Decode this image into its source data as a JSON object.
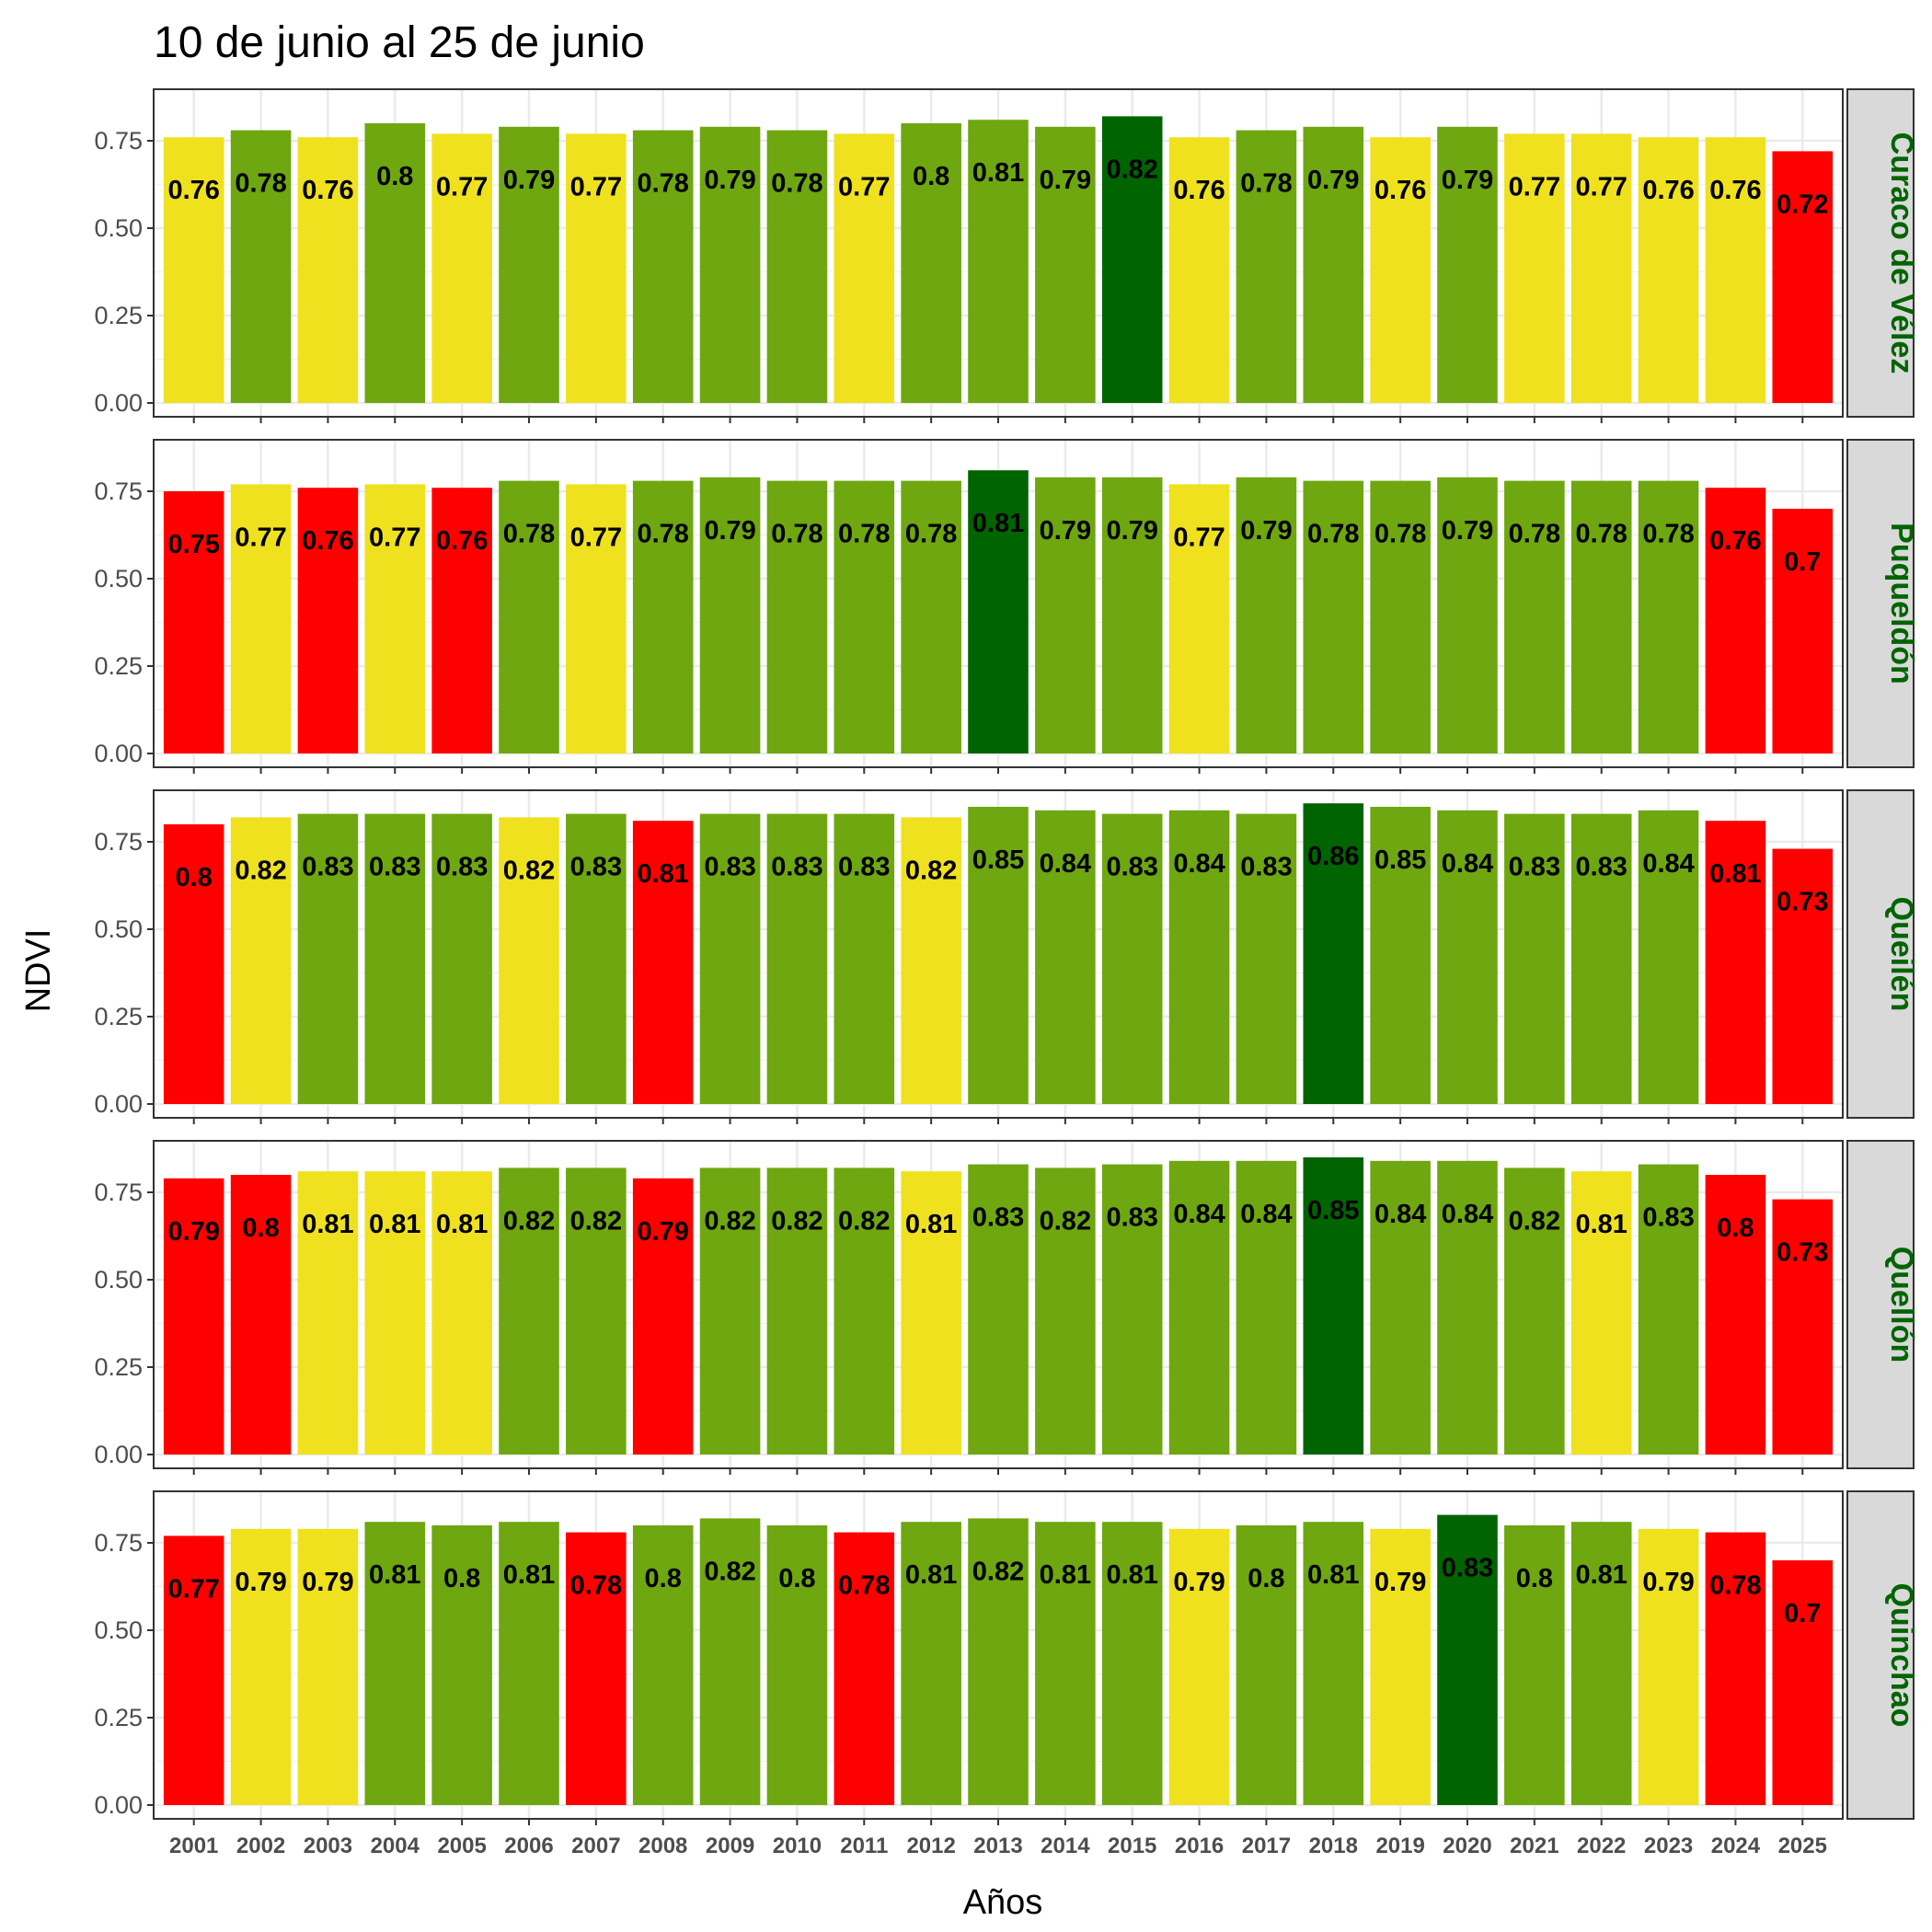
{
  "chart_data": {
    "type": "bar",
    "title": "10 de junio al 25 de junio",
    "xlabel": "Años",
    "ylabel": "NDVI",
    "ylim": [
      0,
      0.9
    ],
    "yticks": [
      "0.00",
      "0.25",
      "0.50",
      "0.75"
    ],
    "grid": true,
    "facet_position": "right",
    "categories": [
      "2001",
      "2002",
      "2003",
      "2004",
      "2005",
      "2006",
      "2007",
      "2008",
      "2009",
      "2010",
      "2011",
      "2012",
      "2013",
      "2014",
      "2015",
      "2016",
      "2017",
      "2018",
      "2019",
      "2020",
      "2021",
      "2022",
      "2023",
      "2024",
      "2025"
    ],
    "colors": {
      "red": "#ff0000",
      "yellow": "#efe11e",
      "green": "#6ea710",
      "darkgreen": "#006400"
    },
    "series": [
      {
        "name": "Curaco de Vélez",
        "values": [
          0.76,
          0.78,
          0.76,
          0.8,
          0.77,
          0.79,
          0.77,
          0.78,
          0.79,
          0.78,
          0.77,
          0.8,
          0.81,
          0.79,
          0.82,
          0.76,
          0.78,
          0.79,
          0.76,
          0.79,
          0.77,
          0.77,
          0.76,
          0.76,
          0.72
        ],
        "labels": [
          "0.76",
          "0.78",
          "0.76",
          "0.8",
          "0.77",
          "0.79",
          "0.77",
          "0.78",
          "0.79",
          "0.78",
          "0.77",
          "0.8",
          "0.81",
          "0.79",
          "0.82",
          "0.76",
          "0.78",
          "0.79",
          "0.76",
          "0.79",
          "0.77",
          "0.77",
          "0.76",
          "0.76",
          "0.72"
        ],
        "color_classes": [
          "yellow",
          "green",
          "yellow",
          "green",
          "yellow",
          "green",
          "yellow",
          "green",
          "green",
          "green",
          "yellow",
          "green",
          "green",
          "green",
          "darkgreen",
          "yellow",
          "green",
          "green",
          "yellow",
          "green",
          "yellow",
          "yellow",
          "yellow",
          "yellow",
          "red"
        ]
      },
      {
        "name": "Puqueldón",
        "values": [
          0.75,
          0.77,
          0.76,
          0.77,
          0.76,
          0.78,
          0.77,
          0.78,
          0.79,
          0.78,
          0.78,
          0.78,
          0.81,
          0.79,
          0.79,
          0.77,
          0.79,
          0.78,
          0.78,
          0.79,
          0.78,
          0.78,
          0.78,
          0.76,
          0.7
        ],
        "labels": [
          "0.75",
          "0.77",
          "0.76",
          "0.77",
          "0.76",
          "0.78",
          "0.77",
          "0.78",
          "0.79",
          "0.78",
          "0.78",
          "0.78",
          "0.81",
          "0.79",
          "0.79",
          "0.77",
          "0.79",
          "0.78",
          "0.78",
          "0.79",
          "0.78",
          "0.78",
          "0.78",
          "0.76",
          "0.7"
        ],
        "color_classes": [
          "red",
          "yellow",
          "red",
          "yellow",
          "red",
          "green",
          "yellow",
          "green",
          "green",
          "green",
          "green",
          "green",
          "darkgreen",
          "green",
          "green",
          "yellow",
          "green",
          "green",
          "green",
          "green",
          "green",
          "green",
          "green",
          "red",
          "red"
        ]
      },
      {
        "name": "Queilén",
        "values": [
          0.8,
          0.82,
          0.83,
          0.83,
          0.83,
          0.82,
          0.83,
          0.81,
          0.83,
          0.83,
          0.83,
          0.82,
          0.85,
          0.84,
          0.83,
          0.84,
          0.83,
          0.86,
          0.85,
          0.84,
          0.83,
          0.83,
          0.84,
          0.81,
          0.73
        ],
        "labels": [
          "0.8",
          "0.82",
          "0.83",
          "0.83",
          "0.83",
          "0.82",
          "0.83",
          "0.81",
          "0.83",
          "0.83",
          "0.83",
          "0.82",
          "0.85",
          "0.84",
          "0.83",
          "0.84",
          "0.83",
          "0.86",
          "0.85",
          "0.84",
          "0.83",
          "0.83",
          "0.84",
          "0.81",
          "0.73"
        ],
        "color_classes": [
          "red",
          "yellow",
          "green",
          "green",
          "green",
          "yellow",
          "green",
          "red",
          "green",
          "green",
          "green",
          "yellow",
          "green",
          "green",
          "green",
          "green",
          "green",
          "darkgreen",
          "green",
          "green",
          "green",
          "green",
          "green",
          "red",
          "red"
        ]
      },
      {
        "name": "Quellón",
        "values": [
          0.79,
          0.8,
          0.81,
          0.81,
          0.81,
          0.82,
          0.82,
          0.79,
          0.82,
          0.82,
          0.82,
          0.81,
          0.83,
          0.82,
          0.83,
          0.84,
          0.84,
          0.85,
          0.84,
          0.84,
          0.82,
          0.81,
          0.83,
          0.8,
          0.73
        ],
        "labels": [
          "0.79",
          "0.8",
          "0.81",
          "0.81",
          "0.81",
          "0.82",
          "0.82",
          "0.79",
          "0.82",
          "0.82",
          "0.82",
          "0.81",
          "0.83",
          "0.82",
          "0.83",
          "0.84",
          "0.84",
          "0.85",
          "0.84",
          "0.84",
          "0.82",
          "0.81",
          "0.83",
          "0.8",
          "0.73"
        ],
        "color_classes": [
          "red",
          "red",
          "yellow",
          "yellow",
          "yellow",
          "green",
          "green",
          "red",
          "green",
          "green",
          "green",
          "yellow",
          "green",
          "green",
          "green",
          "green",
          "green",
          "darkgreen",
          "green",
          "green",
          "green",
          "yellow",
          "green",
          "red",
          "red"
        ]
      },
      {
        "name": "Quinchao",
        "values": [
          0.77,
          0.79,
          0.79,
          0.81,
          0.8,
          0.81,
          0.78,
          0.8,
          0.82,
          0.8,
          0.78,
          0.81,
          0.82,
          0.81,
          0.81,
          0.79,
          0.8,
          0.81,
          0.79,
          0.83,
          0.8,
          0.81,
          0.79,
          0.78,
          0.7
        ],
        "labels": [
          "0.77",
          "0.79",
          "0.79",
          "0.81",
          "0.8",
          "0.81",
          "0.78",
          "0.8",
          "0.82",
          "0.8",
          "0.78",
          "0.81",
          "0.82",
          "0.81",
          "0.81",
          "0.79",
          "0.8",
          "0.81",
          "0.79",
          "0.83",
          "0.8",
          "0.81",
          "0.79",
          "0.78",
          "0.7"
        ],
        "color_classes": [
          "red",
          "yellow",
          "yellow",
          "green",
          "green",
          "green",
          "red",
          "green",
          "green",
          "green",
          "red",
          "green",
          "green",
          "green",
          "green",
          "yellow",
          "green",
          "green",
          "yellow",
          "darkgreen",
          "green",
          "green",
          "yellow",
          "red",
          "red"
        ]
      }
    ]
  }
}
